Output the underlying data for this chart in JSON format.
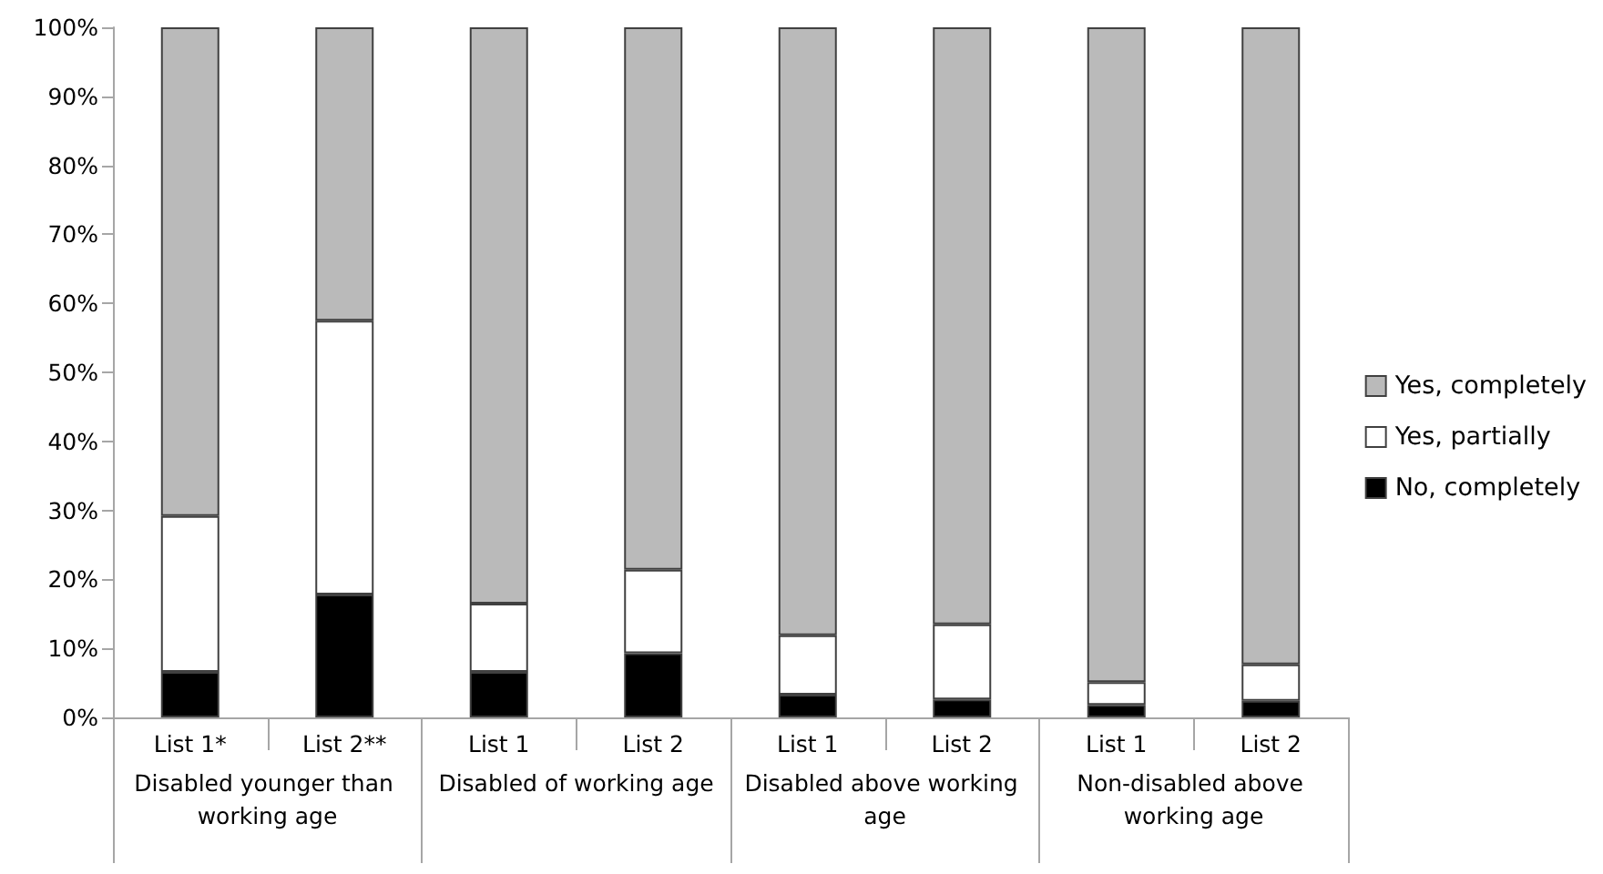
{
  "chart_data": {
    "type": "bar",
    "stacked": true,
    "categories": [
      "List 1*",
      "List 2**",
      "List 1",
      "List 2",
      "List 1",
      "List 2",
      "List 1",
      "List 2"
    ],
    "annotations": [
      "Disabled younger than working age",
      "Disabled of working age",
      "Disabled above working age",
      "Non-disabled above working age"
    ],
    "series": [
      {
        "name": "No, completely",
        "color": "#000000",
        "values": [
          6.6,
          17.8,
          6.6,
          9.3,
          3.3,
          2.6,
          1.8,
          2.4
        ]
      },
      {
        "name": "Yes, partially",
        "color": "#ffffff",
        "values": [
          22.6,
          39.7,
          9.9,
          12.1,
          8.6,
          10.9,
          3.3,
          5.3
        ]
      },
      {
        "name": "Yes, completely",
        "color": "#bababa",
        "values": [
          70.8,
          42.5,
          83.5,
          78.6,
          88.1,
          86.5,
          94.9,
          92.3
        ]
      }
    ],
    "ylim": [
      0,
      100
    ],
    "yticks": [
      {
        "value": 0,
        "label": "0%"
      },
      {
        "value": 10,
        "label": "10%"
      },
      {
        "value": 20,
        "label": "20%"
      },
      {
        "value": 30,
        "label": "30%"
      },
      {
        "value": 40,
        "label": "40%"
      },
      {
        "value": 50,
        "label": "50%"
      },
      {
        "value": 60,
        "label": "60%"
      },
      {
        "value": 70,
        "label": "70%"
      },
      {
        "value": 80,
        "label": "80%"
      },
      {
        "value": 90,
        "label": "90%"
      },
      {
        "value": 100,
        "label": "100%"
      }
    ],
    "grid": false,
    "legend": "right"
  }
}
